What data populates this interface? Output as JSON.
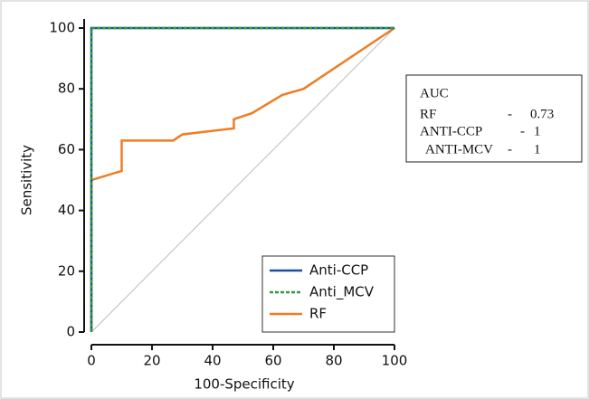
{
  "chart_data": {
    "type": "line",
    "x_label": "100-Specificity",
    "y_label": "Sensitivity",
    "xlim": [
      0,
      100
    ],
    "ylim": [
      0,
      100
    ],
    "xticks": [
      0,
      20,
      40,
      60,
      80,
      100
    ],
    "yticks": [
      0,
      20,
      40,
      60,
      80,
      100
    ],
    "legend": "lower right",
    "series": [
      {
        "name": "Anti-CCP",
        "color": "#1f4e9c",
        "style": "solid",
        "x": [
          0,
          0,
          100
        ],
        "values": [
          0,
          100,
          100
        ]
      },
      {
        "name": "Anti_MCV",
        "color": "#2e9a3e",
        "style": "dashed",
        "x": [
          0,
          0,
          100
        ],
        "values": [
          0,
          100,
          100
        ]
      },
      {
        "name": "RF",
        "color": "#f07c22",
        "style": "solid",
        "x": [
          0,
          0,
          10,
          10,
          27,
          30,
          47,
          47,
          53,
          63,
          70,
          100
        ],
        "values": [
          0,
          50,
          53,
          63,
          63,
          65,
          67,
          70,
          72,
          78,
          80,
          100
        ]
      }
    ],
    "auc_box": {
      "title": "AUC",
      "rows": [
        [
          "RF",
          "-",
          0.73
        ],
        [
          "ANTI-CCP",
          "-",
          1
        ],
        [
          "ANTI-MCV",
          "-",
          1
        ]
      ]
    }
  }
}
